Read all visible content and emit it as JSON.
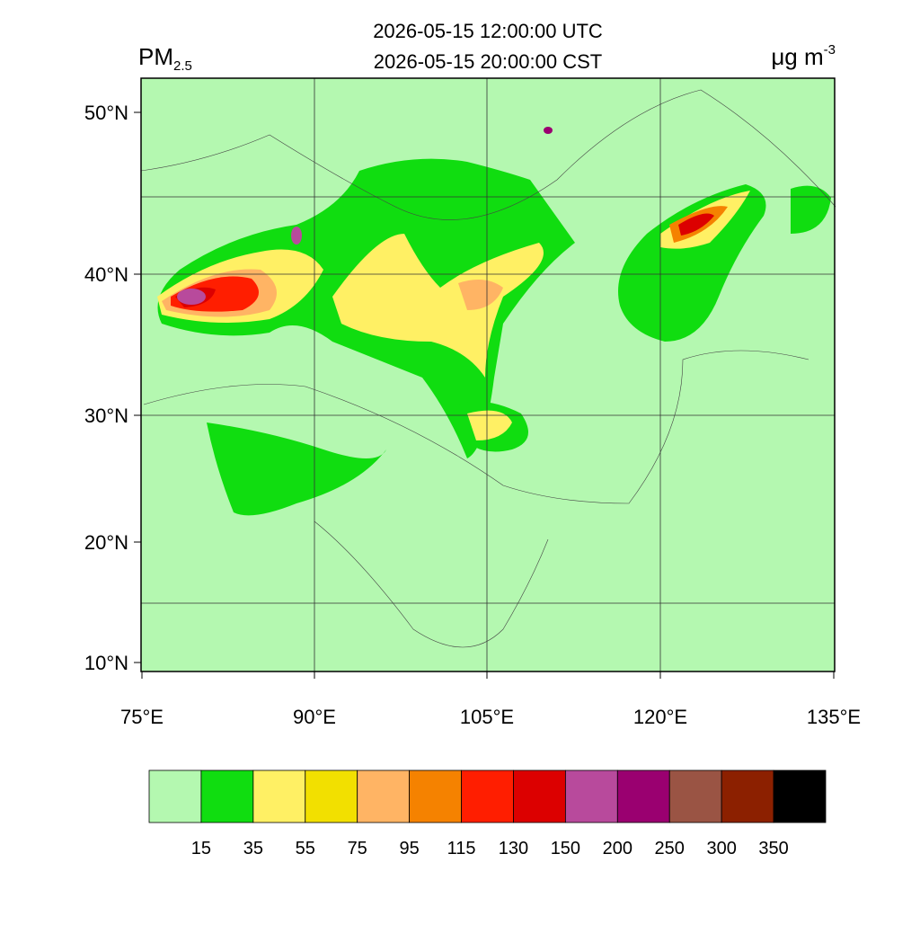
{
  "header": {
    "title_lines": [
      "2026-05-15 12:00:00 UTC",
      "2026-05-15 20:00:00 CST"
    ],
    "variable": {
      "name": "PM",
      "subscript": "2.5"
    },
    "unit": {
      "base": "μg m",
      "superscript": "-3"
    }
  },
  "axes": {
    "lat_labels": [
      "50°N",
      "40°N",
      "30°N",
      "20°N",
      "10°N"
    ],
    "lon_labels": [
      "75°E",
      "90°E",
      "105°E",
      "120°E",
      "135°E"
    ]
  },
  "colorbar": {
    "colors": [
      "#b4f8b0",
      "#10dd10",
      "#fff064",
      "#f2e000",
      "#ffb464",
      "#f58200",
      "#ff1e00",
      "#dc0000",
      "#b84a9c",
      "#9a0070",
      "#9a5444",
      "#8c2000",
      "#000000"
    ],
    "levels": [
      15,
      35,
      55,
      75,
      95,
      115,
      130,
      150,
      200,
      250,
      300,
      350
    ]
  }
}
